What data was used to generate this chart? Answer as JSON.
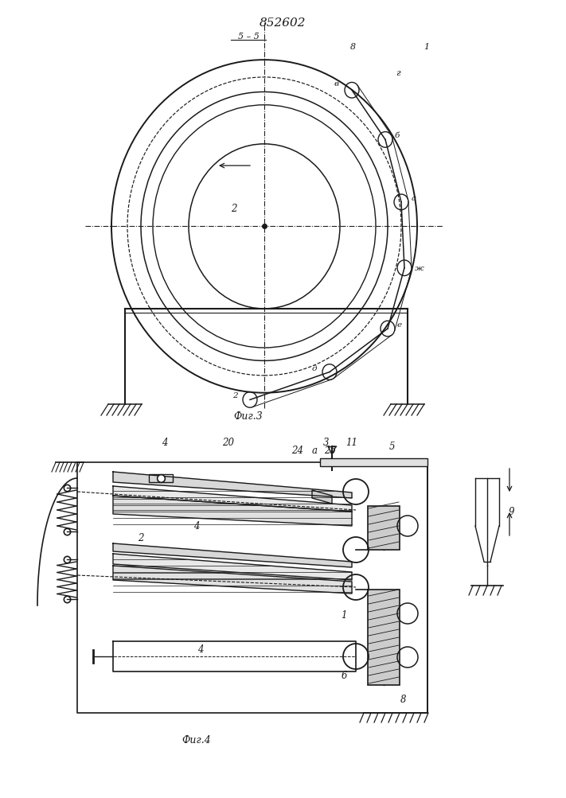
{
  "title": "852602",
  "bg_color": "#ffffff",
  "line_color": "#1a1a1a",
  "fig3_label": "Фиг.3",
  "fig4_label": "Фиг.4",
  "section_label": "5 – 5"
}
